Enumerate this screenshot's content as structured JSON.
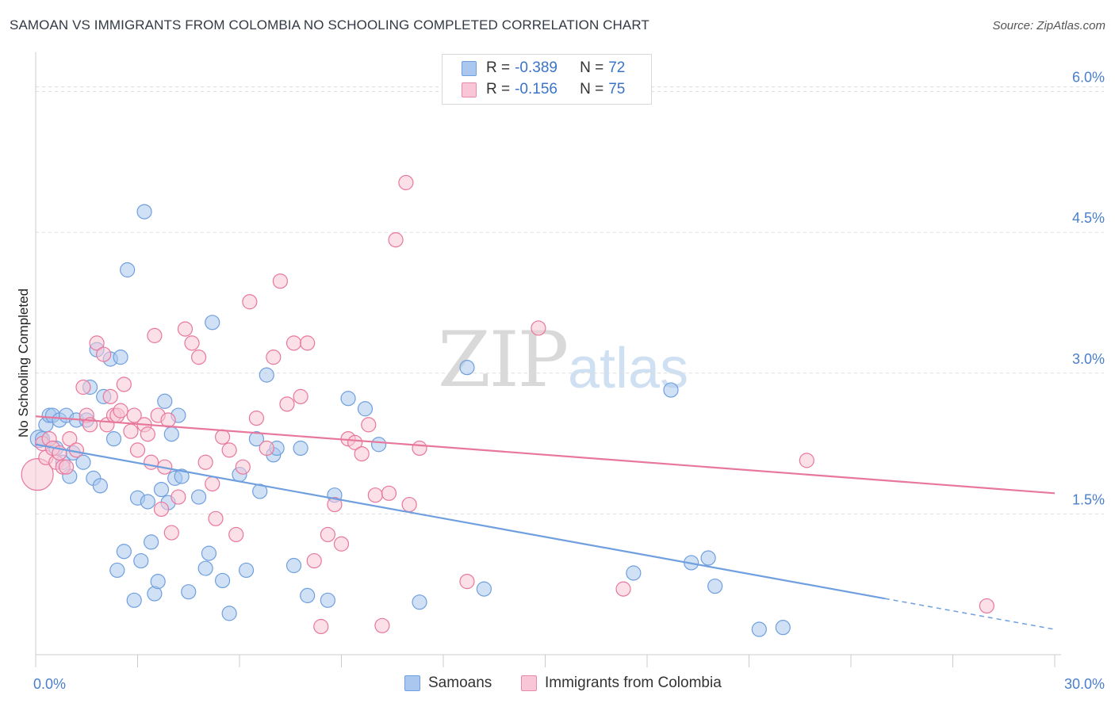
{
  "title": "SAMOAN VS IMMIGRANTS FROM COLOMBIA NO SCHOOLING COMPLETED CORRELATION CHART",
  "source": "Source: ZipAtlas.com",
  "watermark": {
    "zip": "ZIP",
    "atlas": "atlas"
  },
  "legend": {
    "r_label": "R =",
    "n_label": "N =",
    "rows": [
      {
        "r": "-0.389",
        "n": "72",
        "color": "#aac8ef",
        "border": "#6f9fde"
      },
      {
        "r": "-0.156",
        "n": "75",
        "color": "#f8c6d6",
        "border": "#e88aa9"
      }
    ]
  },
  "bottom_legend": [
    {
      "label": "Samoans",
      "color": "#aac8ef",
      "border": "#6f9fde"
    },
    {
      "label": "Immigrants from Colombia",
      "color": "#f8c6d6",
      "border": "#e88aa9"
    }
  ],
  "chart_data": {
    "type": "scatter",
    "title": "SAMOAN VS IMMIGRANTS FROM COLOMBIA NO SCHOOLING COMPLETED CORRELATION CHART",
    "xlabel": "",
    "ylabel": "No Schooling Completed",
    "x_unit": "%",
    "xlim": [
      0,
      30
    ],
    "ylim": [
      0,
      6.3
    ],
    "x_tick_labels": [
      {
        "value": 0,
        "label": "0.0%"
      },
      {
        "value": 30,
        "label": "30.0%"
      }
    ],
    "y_tick_labels": [
      {
        "value": 1.5,
        "label": "1.5%"
      },
      {
        "value": 3.0,
        "label": "3.0%"
      },
      {
        "value": 4.5,
        "label": "4.5%"
      },
      {
        "value": 6.0,
        "label": "6.0%"
      }
    ],
    "grid": "horizontal dashed",
    "legend_position": "top-center",
    "series": [
      {
        "name": "Samoans",
        "color": "#6f9fde",
        "fill": "#aac8ef",
        "trend": {
          "x": [
            0,
            25,
            30
          ],
          "y": [
            2.24,
            0.6,
            0.27
          ],
          "solid_to": 25
        },
        "points": [
          [
            0.1,
            2.3
          ],
          [
            0.2,
            2.3
          ],
          [
            0.3,
            2.45
          ],
          [
            0.4,
            2.55
          ],
          [
            0.5,
            2.55
          ],
          [
            0.6,
            2.2
          ],
          [
            0.7,
            2.5
          ],
          [
            0.8,
            2.05
          ],
          [
            0.9,
            2.55
          ],
          [
            1.0,
            1.9
          ],
          [
            1.1,
            2.15
          ],
          [
            1.2,
            2.5
          ],
          [
            1.4,
            2.05
          ],
          [
            1.5,
            2.5
          ],
          [
            1.6,
            2.85
          ],
          [
            1.7,
            1.88
          ],
          [
            1.8,
            3.25
          ],
          [
            1.9,
            1.8
          ],
          [
            2.0,
            2.75
          ],
          [
            2.2,
            3.15
          ],
          [
            2.3,
            2.3
          ],
          [
            2.4,
            0.9
          ],
          [
            2.5,
            3.17
          ],
          [
            2.6,
            1.1
          ],
          [
            2.7,
            4.1
          ],
          [
            2.9,
            0.58
          ],
          [
            3.0,
            1.67
          ],
          [
            3.1,
            1.0
          ],
          [
            3.2,
            4.72
          ],
          [
            3.3,
            1.63
          ],
          [
            3.4,
            1.2
          ],
          [
            3.5,
            0.65
          ],
          [
            3.6,
            0.78
          ],
          [
            3.7,
            1.76
          ],
          [
            3.8,
            2.7
          ],
          [
            3.9,
            1.62
          ],
          [
            4.0,
            2.35
          ],
          [
            4.1,
            1.88
          ],
          [
            4.2,
            2.55
          ],
          [
            4.3,
            1.9
          ],
          [
            4.5,
            0.67
          ],
          [
            4.8,
            1.68
          ],
          [
            5.0,
            0.92
          ],
          [
            5.1,
            1.08
          ],
          [
            5.2,
            3.54
          ],
          [
            5.5,
            0.79
          ],
          [
            5.7,
            0.44
          ],
          [
            6.0,
            1.92
          ],
          [
            6.2,
            0.9
          ],
          [
            6.5,
            2.3
          ],
          [
            6.6,
            1.74
          ],
          [
            6.8,
            2.98
          ],
          [
            7.0,
            2.13
          ],
          [
            7.1,
            2.2
          ],
          [
            7.6,
            0.95
          ],
          [
            7.8,
            2.2
          ],
          [
            8.0,
            0.63
          ],
          [
            8.6,
            0.58
          ],
          [
            8.8,
            1.7
          ],
          [
            9.2,
            2.73
          ],
          [
            9.7,
            2.62
          ],
          [
            10.1,
            2.24
          ],
          [
            11.3,
            0.56
          ],
          [
            12.7,
            3.06
          ],
          [
            13.2,
            0.7
          ],
          [
            17.6,
            0.87
          ],
          [
            18.7,
            2.82
          ],
          [
            19.3,
            0.98
          ],
          [
            19.8,
            1.03
          ],
          [
            20.0,
            0.73
          ],
          [
            21.3,
            0.27
          ],
          [
            22.0,
            0.29
          ]
        ]
      },
      {
        "name": "Immigrants from Colombia",
        "color": "#e8779c",
        "fill": "#f8c6d6",
        "trend": {
          "x": [
            0,
            30
          ],
          "y": [
            2.54,
            1.72
          ],
          "solid_to": 30
        },
        "points": [
          [
            0.05,
            1.92
          ],
          [
            0.2,
            2.25
          ],
          [
            0.3,
            2.1
          ],
          [
            0.4,
            2.3
          ],
          [
            0.5,
            2.2
          ],
          [
            0.6,
            2.05
          ],
          [
            0.7,
            2.15
          ],
          [
            0.8,
            2.0
          ],
          [
            0.9,
            2.0
          ],
          [
            1.0,
            2.3
          ],
          [
            1.2,
            2.18
          ],
          [
            1.4,
            2.85
          ],
          [
            1.5,
            2.55
          ],
          [
            1.6,
            2.45
          ],
          [
            1.8,
            3.32
          ],
          [
            2.0,
            3.2
          ],
          [
            2.1,
            2.45
          ],
          [
            2.2,
            2.75
          ],
          [
            2.3,
            2.55
          ],
          [
            2.4,
            2.55
          ],
          [
            2.5,
            2.6
          ],
          [
            2.6,
            2.88
          ],
          [
            2.8,
            2.38
          ],
          [
            2.9,
            2.55
          ],
          [
            3.0,
            2.18
          ],
          [
            3.2,
            2.45
          ],
          [
            3.3,
            2.35
          ],
          [
            3.4,
            2.05
          ],
          [
            3.5,
            3.4
          ],
          [
            3.6,
            2.55
          ],
          [
            3.7,
            1.55
          ],
          [
            3.8,
            2.0
          ],
          [
            3.9,
            2.5
          ],
          [
            4.0,
            1.3
          ],
          [
            4.2,
            1.68
          ],
          [
            4.4,
            3.47
          ],
          [
            4.6,
            3.32
          ],
          [
            4.8,
            3.17
          ],
          [
            5.0,
            2.05
          ],
          [
            5.2,
            1.82
          ],
          [
            5.3,
            1.45
          ],
          [
            5.5,
            2.32
          ],
          [
            5.7,
            2.18
          ],
          [
            5.9,
            1.28
          ],
          [
            6.1,
            2.0
          ],
          [
            6.3,
            3.76
          ],
          [
            6.5,
            2.52
          ],
          [
            6.8,
            2.2
          ],
          [
            7.0,
            3.17
          ],
          [
            7.2,
            3.98
          ],
          [
            7.4,
            2.67
          ],
          [
            7.6,
            3.32
          ],
          [
            7.8,
            2.75
          ],
          [
            8.0,
            3.32
          ],
          [
            8.2,
            1.0
          ],
          [
            8.4,
            0.3
          ],
          [
            8.6,
            1.28
          ],
          [
            8.8,
            1.6
          ],
          [
            9.0,
            1.18
          ],
          [
            9.2,
            2.3
          ],
          [
            9.4,
            2.26
          ],
          [
            9.6,
            2.14
          ],
          [
            9.8,
            2.45
          ],
          [
            10.0,
            1.7
          ],
          [
            10.2,
            0.31
          ],
          [
            10.4,
            1.72
          ],
          [
            10.6,
            4.42
          ],
          [
            10.9,
            5.03
          ],
          [
            11.0,
            1.6
          ],
          [
            11.3,
            2.2
          ],
          [
            12.7,
            0.78
          ],
          [
            14.8,
            3.48
          ],
          [
            17.3,
            0.7
          ],
          [
            22.7,
            2.07
          ],
          [
            28.0,
            0.52
          ]
        ]
      }
    ]
  }
}
